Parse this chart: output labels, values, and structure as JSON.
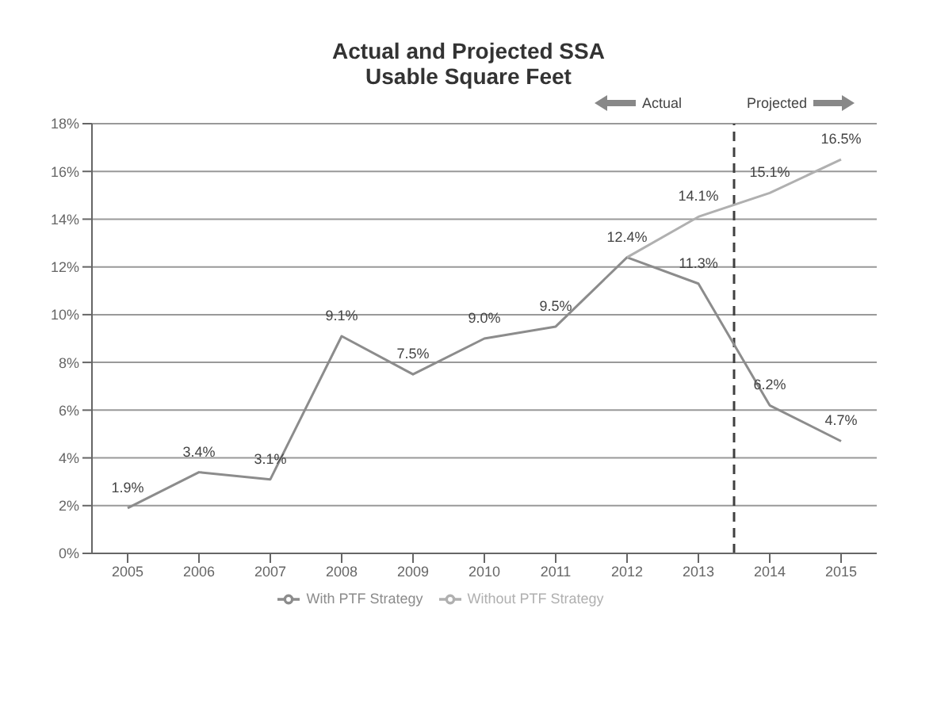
{
  "chart_data": {
    "type": "line",
    "title": "Actual and Projected SSA\nUsable Square Feet",
    "xlim": [
      2004.5,
      2015.5
    ],
    "xticks": [
      2005,
      2006,
      2007,
      2008,
      2009,
      2010,
      2011,
      2012,
      2013,
      2014,
      2015
    ],
    "ylim": [
      0,
      18
    ],
    "yticks": [
      {
        "value": 0,
        "label": "0%"
      },
      {
        "value": 2,
        "label": "2%"
      },
      {
        "value": 4,
        "label": "4%"
      },
      {
        "value": 6,
        "label": "6%"
      },
      {
        "value": 8,
        "label": "8%"
      },
      {
        "value": 10,
        "label": "10%"
      },
      {
        "value": 12,
        "label": "12%"
      },
      {
        "value": 14,
        "label": "14%"
      },
      {
        "value": 16,
        "label": "16%"
      },
      {
        "value": 18,
        "label": "18%"
      }
    ],
    "series": [
      {
        "name": "With PTF Strategy",
        "color": "#8c8c8c",
        "x": [
          2005,
          2006,
          2007,
          2008,
          2009,
          2010,
          2011,
          2012,
          2013,
          2014,
          2015
        ],
        "values": [
          1.9,
          3.4,
          3.1,
          9.1,
          7.5,
          9.0,
          9.5,
          12.4,
          11.3,
          6.2,
          4.7
        ],
        "value_labels": [
          "1.9%",
          "3.4%",
          "3.1%",
          "9.1%",
          "7.5%",
          "9.0%",
          "9.5%",
          "12.4%",
          "11.3%",
          "6.2%",
          "4.7%"
        ]
      },
      {
        "name": "Without PTF Strategy",
        "color": "#b0b0b0",
        "x": [
          2012,
          2013,
          2014,
          2015
        ],
        "values": [
          12.4,
          14.1,
          15.1,
          16.5
        ],
        "value_labels": [
          null,
          "14.1%",
          "15.1%",
          "16.5%"
        ]
      }
    ],
    "ref_lines": [
      {
        "axis": "x",
        "value": 2013.5,
        "color": "#404040",
        "line_style": "dashed"
      }
    ],
    "annotations": [
      "Actual",
      "Projected"
    ],
    "grid": "y",
    "legend": "bottom",
    "marker": "none",
    "line_style": "solid"
  }
}
